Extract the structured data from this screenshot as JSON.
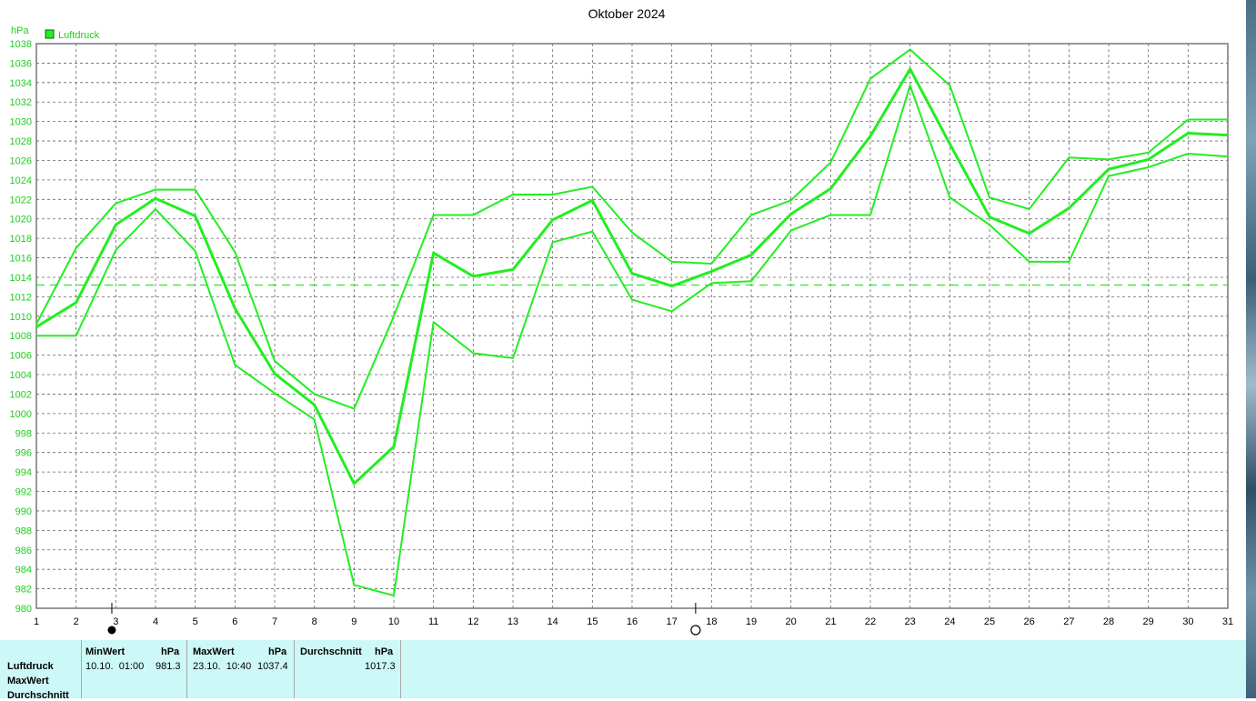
{
  "chart_data": {
    "type": "line",
    "title": "Oktober 2024",
    "unit_label": "hPa",
    "legend": [
      {
        "name": "Luftdruck",
        "color": "#22ee22"
      }
    ],
    "x": [
      1,
      2,
      3,
      4,
      5,
      6,
      7,
      8,
      9,
      10,
      11,
      12,
      13,
      14,
      15,
      16,
      17,
      18,
      19,
      20,
      21,
      22,
      23,
      24,
      25,
      26,
      27,
      28,
      29,
      30,
      31
    ],
    "series": [
      {
        "name": "Max",
        "values": [
          1009.2,
          1017,
          1021.6,
          1023,
          1023,
          1016.6,
          1005.4,
          1002,
          1000.5,
          1010,
          1020.4,
          1020.4,
          1022.5,
          1022.5,
          1023.3,
          1018.6,
          1015.6,
          1015.4,
          1020.4,
          1021.9,
          1025.8,
          1034.4,
          1037.4,
          1033.7,
          1022.2,
          1021,
          1026.3,
          1026.1,
          1026.8,
          1030.2,
          1030.2
        ]
      },
      {
        "name": "Mittel",
        "values": [
          1008.9,
          1011.4,
          1019.4,
          1022.1,
          1020.3,
          1010.8,
          1004.1,
          1000.9,
          992.8,
          996.6,
          1016.5,
          1014.1,
          1014.8,
          1019.9,
          1021.9,
          1014.4,
          1013.1,
          1014.6,
          1016.3,
          1020.5,
          1023.1,
          1028.5,
          1035.4,
          1027.7,
          1020.2,
          1018.5,
          1021.1,
          1025.1,
          1026.1,
          1028.8,
          1028.6
        ]
      },
      {
        "name": "Min",
        "values": [
          1008,
          1008,
          1016.8,
          1021,
          1016.7,
          1005,
          1002.1,
          999.4,
          982.4,
          981.3,
          1009.4,
          1006.2,
          1005.7,
          1017.6,
          1018.7,
          1011.7,
          1010.5,
          1013.4,
          1013.6,
          1018.8,
          1020.4,
          1020.4,
          1033.7,
          1022.2,
          1019.4,
          1015.6,
          1015.6,
          1024.4,
          1025.3,
          1026.7,
          1026.4
        ]
      }
    ],
    "average_line": 1013.2,
    "ylim": [
      980,
      1038
    ],
    "y_ticks": [
      980,
      982,
      984,
      986,
      988,
      990,
      992,
      994,
      996,
      998,
      1000,
      1002,
      1004,
      1006,
      1008,
      1010,
      1012,
      1014,
      1016,
      1018,
      1020,
      1022,
      1024,
      1026,
      1028,
      1030,
      1032,
      1034,
      1036,
      1038
    ],
    "x_ticks": [
      "1",
      "2",
      "3",
      "4",
      "5",
      "6",
      "7",
      "8",
      "9",
      "10",
      "11",
      "12",
      "13",
      "14",
      "15",
      "16",
      "17",
      "18",
      "19",
      "20",
      "21",
      "22",
      "23",
      "24",
      "25",
      "26",
      "27",
      "28",
      "29",
      "30",
      "31"
    ],
    "grid": true,
    "legend_position": "top-left",
    "moon_phases": [
      {
        "day": 2.9,
        "symbol": "new-moon"
      },
      {
        "day": 17.6,
        "symbol": "full-moon"
      }
    ]
  },
  "table": {
    "row_labels": [
      "Luftdruck",
      "MaxWert",
      "Durchschnitt"
    ],
    "min": {
      "header": "MinWert",
      "unit": "hPa",
      "time": "10.10.  01:00",
      "value": "981.3"
    },
    "max": {
      "header": "MaxWert",
      "unit": "hPa",
      "time": "23.10.  10:40",
      "value": "1037.4"
    },
    "avg": {
      "header": "Durchschnitt",
      "unit": "hPa",
      "value": "1017.3"
    }
  },
  "colors": {
    "line": "#22ee22",
    "axis_text": "#22cc22",
    "panel": "#ccf9f7"
  }
}
